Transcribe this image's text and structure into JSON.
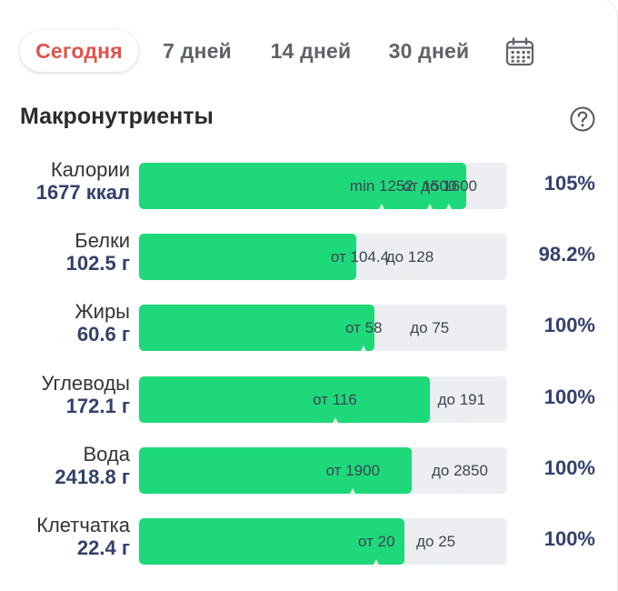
{
  "tabs": [
    {
      "label": "Сегодня",
      "active": true
    },
    {
      "label": "7 дней",
      "active": false
    },
    {
      "label": "14 дней",
      "active": false
    },
    {
      "label": "30 дней",
      "active": false
    }
  ],
  "icons": {
    "calendar": "calendar-icon",
    "help": "help-icon"
  },
  "section": {
    "title": "Макронутриенты"
  },
  "colors": {
    "fill": "#1ed97a",
    "track": "#eceef1",
    "accent": "#e0524d",
    "value": "#34406b"
  },
  "nutrients": [
    {
      "name": "Калории",
      "value": "1677 ккал",
      "pct": "105%",
      "fill": 0.89,
      "scale_max": 1900,
      "minimum": 1677,
      "markers": [
        {
          "text": "min 1252",
          "at": 1252
        },
        {
          "text": "от 1500",
          "at": 1500
        },
        {
          "text": "до 1600",
          "at": 1600
        }
      ]
    },
    {
      "name": "Белки",
      "value": "102.5 г",
      "pct": "98.2%",
      "fill": 0.59,
      "scale_max": 174,
      "markers": [
        {
          "text": "от 104.4",
          "at": 104.4
        },
        {
          "text": "до 128",
          "at": 128
        }
      ]
    },
    {
      "name": "Жиры",
      "value": "60.6 г",
      "pct": "100%",
      "fill": 0.64,
      "scale_max": 95,
      "markers": [
        {
          "text": "от 58",
          "at": 58
        },
        {
          "text": "до 75",
          "at": 75
        }
      ]
    },
    {
      "name": "Углеводы",
      "value": "172.1 г",
      "pct": "100%",
      "fill": 0.79,
      "scale_max": 218,
      "markers": [
        {
          "text": "от 116",
          "at": 116
        },
        {
          "text": "до 191",
          "at": 191
        }
      ]
    },
    {
      "name": "Вода",
      "value": "2418.8 г",
      "pct": "100%",
      "fill": 0.74,
      "scale_max": 3270,
      "markers": [
        {
          "text": "от 1900",
          "at": 1900
        },
        {
          "text": "до 2850",
          "at": 2850
        }
      ]
    },
    {
      "name": "Клетчатка",
      "value": "22.4 г",
      "pct": "100%",
      "fill": 0.72,
      "scale_max": 31,
      "markers": [
        {
          "text": "от 20",
          "at": 20
        },
        {
          "text": "до 25",
          "at": 25
        }
      ]
    }
  ]
}
